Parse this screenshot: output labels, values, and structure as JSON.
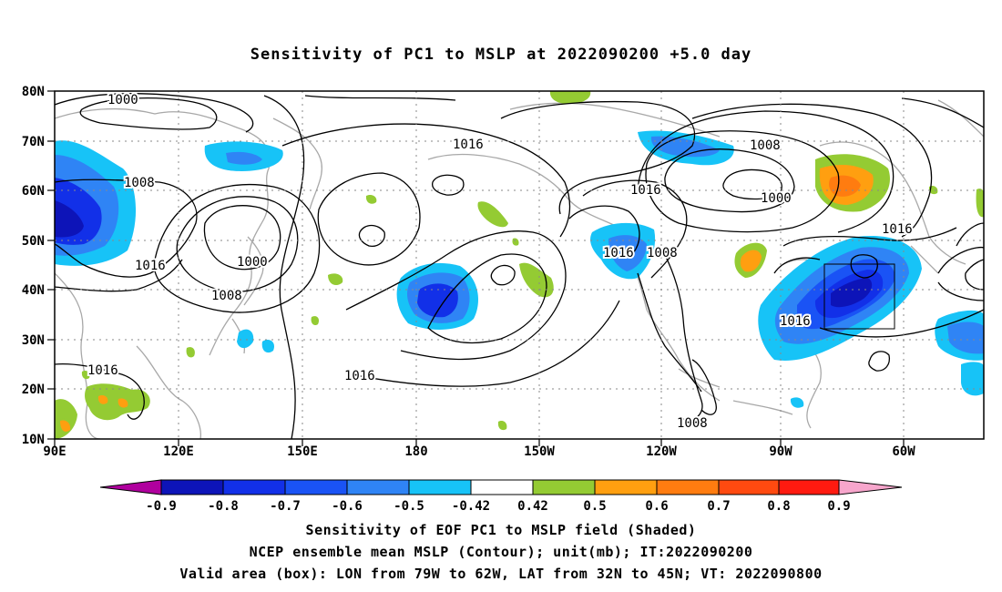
{
  "title": "Sensitivity of PC1 to MSLP at 2022090200 +5.0 day",
  "axes": {
    "lat_labels": [
      "80N",
      "70N",
      "60N",
      "50N",
      "40N",
      "30N",
      "20N",
      "10N"
    ],
    "lon_labels": [
      "90E",
      "120E",
      "150E",
      "180",
      "150W",
      "120W",
      "90W",
      "60W"
    ]
  },
  "contour_labels": [
    "1000",
    "1008",
    "1016",
    "1016",
    "1000",
    "1008",
    "1016",
    "1016",
    "1008",
    "1000",
    "1016",
    "1016",
    "1008",
    "1016",
    "1016",
    "1008"
  ],
  "colorbar": {
    "labels": [
      "-0.9",
      "-0.8",
      "-0.7",
      "-0.6",
      "-0.5",
      "-0.42",
      "0.42",
      "0.5",
      "0.6",
      "0.7",
      "0.8",
      "0.9"
    ],
    "colors": [
      "#b0009e",
      "#0d14b8",
      "#1230e8",
      "#1a53f5",
      "#2f84f5",
      "#17c3f7",
      "#ffffff",
      "#94cb33",
      "#ff9f10",
      "#ff7c10",
      "#ff4a10",
      "#ff1a10",
      "#f7a6cc"
    ]
  },
  "footer": {
    "line1": "Sensitivity of EOF PC1 to MSLP field (Shaded)",
    "line2": "NCEP ensemble mean MSLP (Contour); unit(mb); IT:2022090200",
    "line3": "Valid area (box): LON from 79W to 62W, LAT from 32N to 45N; VT: 2022090800"
  }
}
